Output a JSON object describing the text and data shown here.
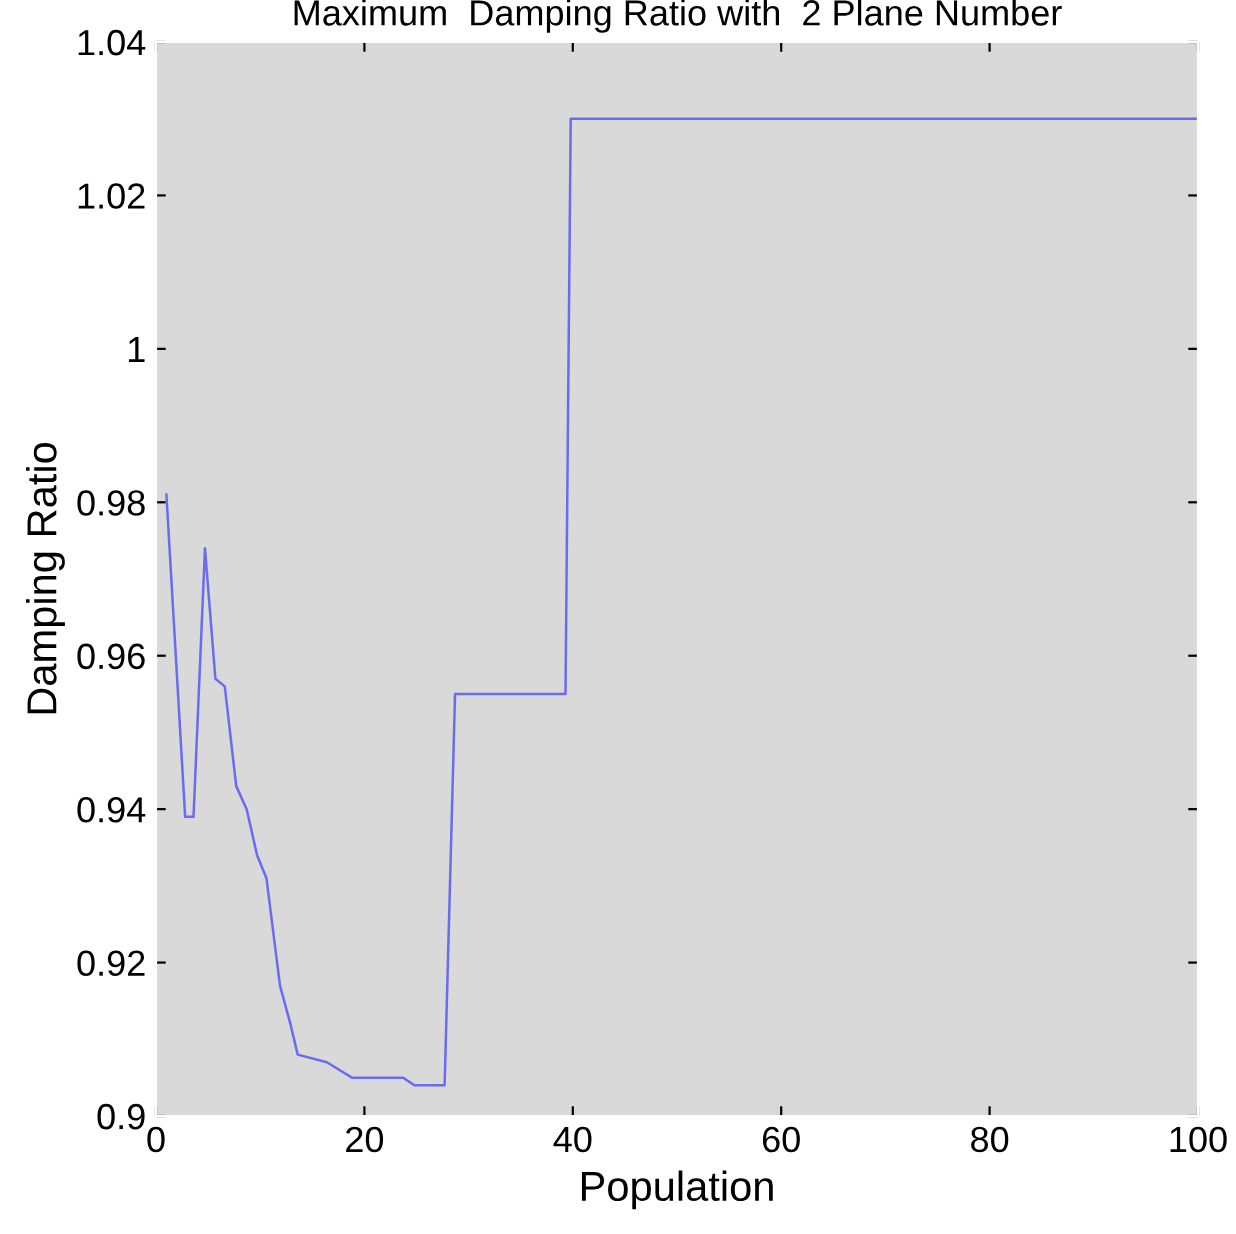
{
  "chart_data": {
    "type": "line",
    "title": "Maximum  Damping Ratio with  2 Plane Number",
    "xlabel": "Population",
    "ylabel": "Damping Ratio",
    "x": [
      1,
      2.8,
      3.6,
      4.7,
      5.7,
      6.6,
      7.7,
      8.7,
      9.7,
      10.6,
      11.9,
      12.9,
      13.6,
      16.4,
      18.8,
      23.7,
      24.8,
      27.7,
      28.7,
      39.3,
      39.8,
      100
    ],
    "series": [
      {
        "color": "#6b6bf0",
        "values": [
          0.981,
          0.939,
          0.939,
          0.974,
          0.957,
          0.956,
          0.943,
          0.94,
          0.934,
          0.931,
          0.917,
          0.912,
          0.908,
          0.907,
          0.905,
          0.905,
          0.904,
          0.904,
          0.955,
          0.955,
          1.03,
          1.03
        ]
      }
    ],
    "xlim": [
      0,
      100
    ],
    "ylim": [
      0.9,
      1.04
    ],
    "xticks": [
      0,
      20,
      40,
      60,
      80,
      100
    ],
    "yticks": [
      0.9,
      0.92,
      0.94,
      0.96,
      0.98,
      1,
      1.02,
      1.04
    ],
    "grid": false,
    "legend": false,
    "marker": "none",
    "line_style": "solid"
  }
}
